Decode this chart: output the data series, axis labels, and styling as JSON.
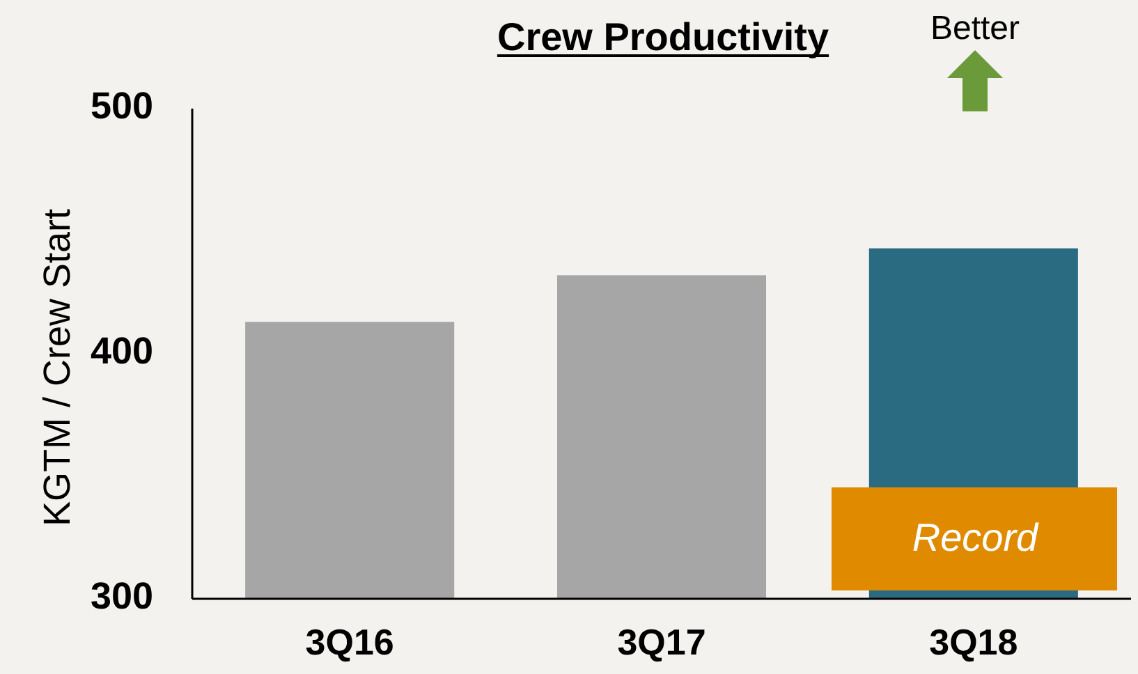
{
  "chart_data": {
    "type": "bar",
    "title": "Crew Productivity",
    "ylabel": "KGTM / Crew Start",
    "categories": [
      "3Q16",
      "3Q17",
      "3Q18"
    ],
    "values": [
      413,
      432,
      443
    ],
    "colors": [
      "#a6a6a6",
      "#a6a6a6",
      "#2a6b82"
    ],
    "ylim": [
      300,
      500
    ],
    "yticks": [
      300,
      400,
      500
    ],
    "grid": false,
    "annotations": [
      "Better",
      "Record"
    ]
  }
}
